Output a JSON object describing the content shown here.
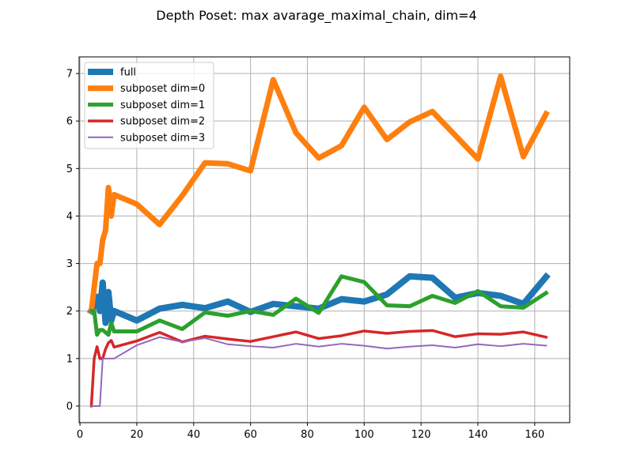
{
  "chart_data": {
    "type": "line",
    "title": "Depth Poset: max avarage_maximal_chain, dim=4",
    "xlabel": "",
    "ylabel": "",
    "xlim": [
      -0.3,
      172.3
    ],
    "ylim": [
      -0.35,
      7.35
    ],
    "xticks": [
      0,
      20,
      40,
      60,
      80,
      100,
      120,
      140,
      160
    ],
    "yticks": [
      0,
      1,
      2,
      3,
      4,
      5,
      6,
      7
    ],
    "grid": true,
    "legend_position": "top-left",
    "series": [
      {
        "name": "full",
        "color": "#1f77b4",
        "width": 8,
        "x": [
          4,
          5,
          6,
          7,
          8,
          9,
          10,
          11,
          12,
          20,
          28,
          36,
          44,
          52,
          60,
          68,
          76,
          84,
          92,
          100,
          108,
          116,
          124,
          132,
          140,
          148,
          156,
          164
        ],
        "y": [
          2.0,
          2.1,
          2.3,
          2.0,
          2.6,
          1.75,
          2.4,
          1.8,
          2.0,
          1.8,
          2.05,
          2.13,
          2.06,
          2.2,
          1.98,
          2.15,
          2.1,
          2.05,
          2.25,
          2.2,
          2.35,
          2.73,
          2.7,
          2.28,
          2.38,
          2.32,
          2.15,
          2.72
        ]
      },
      {
        "name": "subposet dim=0",
        "color": "#ff7f0e",
        "width": 7,
        "x": [
          4,
          5,
          6,
          7,
          8,
          9,
          10,
          11,
          12,
          20,
          28,
          36,
          44,
          52,
          60,
          68,
          76,
          84,
          92,
          100,
          108,
          116,
          124,
          132,
          140,
          148,
          156,
          164
        ],
        "y": [
          2.0,
          2.5,
          3.0,
          3.0,
          3.5,
          3.7,
          4.6,
          4.0,
          4.45,
          4.25,
          3.82,
          4.43,
          5.12,
          5.1,
          4.95,
          6.87,
          5.75,
          5.22,
          5.48,
          6.29,
          5.61,
          5.98,
          6.2,
          5.7,
          5.2,
          6.94,
          5.25,
          6.15
        ]
      },
      {
        "name": "subposet dim=1",
        "color": "#2ca02c",
        "width": 5,
        "x": [
          4,
          5,
          6,
          7,
          8,
          9,
          10,
          11,
          12,
          20,
          28,
          36,
          44,
          52,
          60,
          68,
          76,
          84,
          92,
          100,
          108,
          116,
          124,
          132,
          140,
          148,
          156,
          164
        ],
        "y": [
          2.0,
          2.0,
          1.5,
          1.6,
          1.6,
          1.55,
          1.5,
          1.75,
          1.57,
          1.57,
          1.8,
          1.62,
          1.97,
          1.9,
          2.0,
          1.92,
          2.26,
          1.96,
          2.73,
          2.61,
          2.12,
          2.1,
          2.32,
          2.17,
          2.42,
          2.1,
          2.07,
          2.38
        ]
      },
      {
        "name": "subposet dim=2",
        "color": "#d62728",
        "width": 3.5,
        "x": [
          4,
          5,
          6,
          7,
          8,
          9,
          10,
          11,
          12,
          20,
          28,
          36,
          44,
          52,
          60,
          68,
          76,
          84,
          92,
          100,
          108,
          116,
          124,
          132,
          140,
          148,
          156,
          164
        ],
        "y": [
          0.0,
          1.0,
          1.25,
          1.0,
          1.0,
          1.2,
          1.33,
          1.38,
          1.24,
          1.37,
          1.55,
          1.35,
          1.47,
          1.41,
          1.36,
          1.46,
          1.56,
          1.42,
          1.48,
          1.58,
          1.53,
          1.57,
          1.59,
          1.46,
          1.52,
          1.51,
          1.56,
          1.45
        ]
      },
      {
        "name": "subposet dim=3",
        "color": "#9467bd",
        "width": 2,
        "x": [
          4,
          5,
          6,
          7,
          8,
          9,
          10,
          11,
          12,
          20,
          28,
          36,
          44,
          52,
          60,
          68,
          76,
          84,
          92,
          100,
          108,
          116,
          124,
          132,
          140,
          148,
          156,
          164
        ],
        "y": [
          0.0,
          0.0,
          0.0,
          0.0,
          1.0,
          1.0,
          1.0,
          1.0,
          1.0,
          1.28,
          1.45,
          1.35,
          1.43,
          1.3,
          1.26,
          1.23,
          1.31,
          1.25,
          1.31,
          1.27,
          1.21,
          1.25,
          1.28,
          1.23,
          1.3,
          1.26,
          1.31,
          1.27
        ]
      }
    ]
  }
}
